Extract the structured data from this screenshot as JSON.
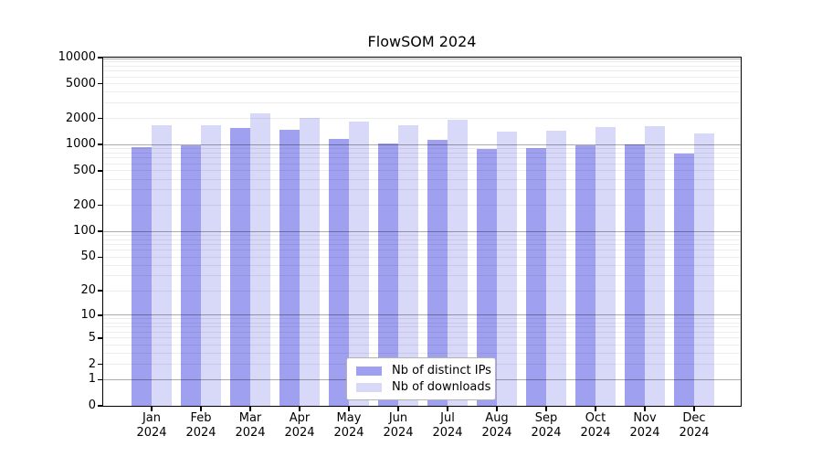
{
  "title": "FlowSOM 2024",
  "colors": {
    "distinct_ips_bar": "#a0a0f0",
    "downloads_bar": "#d8d8f8",
    "axis": "#000000",
    "major_gridline": "#ababab",
    "minor_gridline": "#ededed"
  },
  "legend": {
    "items": [
      {
        "label": "Nb of distinct IPs",
        "swatch": "distinct-ips-swatch"
      },
      {
        "label": "Nb of downloads",
        "swatch": "downloads-swatch"
      }
    ]
  },
  "chart_data": {
    "type": "bar",
    "title": "FlowSOM 2024",
    "yscale": "log1p",
    "ylim": [
      0,
      10000
    ],
    "grid": "horizontal, major lines at powers of 10, faint minor lines at 2-9 multiples",
    "legend_position": "bottom-center inside plot",
    "y_ticks": [
      0,
      1,
      2,
      5,
      10,
      20,
      50,
      100,
      200,
      500,
      1000,
      2000,
      5000,
      10000
    ],
    "categories": [
      "Jan 2024",
      "Feb 2024",
      "Mar 2024",
      "Apr 2024",
      "May 2024",
      "Jun 2024",
      "Jul 2024",
      "Aug 2024",
      "Sep 2024",
      "Oct 2024",
      "Nov 2024",
      "Dec 2024"
    ],
    "month_labels": [
      "Jan",
      "Feb",
      "Mar",
      "Apr",
      "May",
      "Jun",
      "Jul",
      "Aug",
      "Sep",
      "Oct",
      "Nov",
      "Dec"
    ],
    "year_label": "2024",
    "series": [
      {
        "name": "Nb of distinct IPs",
        "color": "#a0a0f0",
        "values": [
          935,
          980,
          1560,
          1465,
          1175,
          1030,
          1130,
          900,
          920,
          975,
          1005,
          795
        ]
      },
      {
        "name": "Nb of downloads",
        "color": "#d8d8f8",
        "values": [
          1680,
          1660,
          2310,
          2030,
          1840,
          1670,
          1915,
          1410,
          1455,
          1600,
          1630,
          1350
        ]
      }
    ]
  }
}
